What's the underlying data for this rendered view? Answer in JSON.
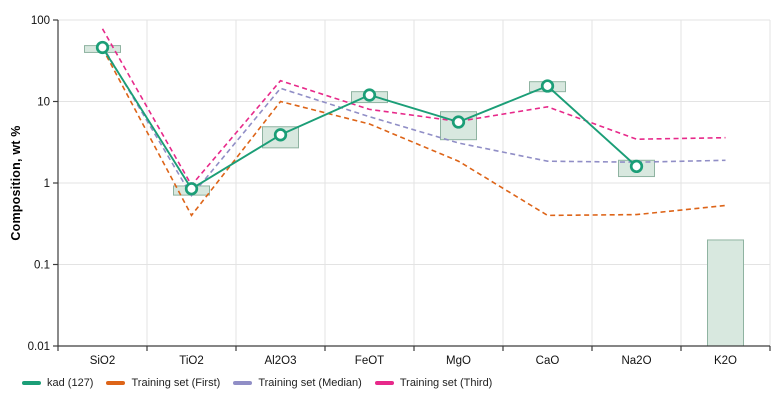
{
  "chart_data": {
    "type": "line",
    "title": "",
    "ylabel": "Composition, wt %",
    "yscale": "log",
    "ylim": [
      0.01,
      100
    ],
    "yticks": [
      "100",
      "10",
      "1",
      "0.1",
      "0.01"
    ],
    "ytick_values": [
      100,
      10,
      1,
      0.1,
      0.01
    ],
    "categories": [
      "SiO2",
      "TiO2",
      "Al2O3",
      "FeOT",
      "MgO",
      "CaO",
      "Na2O",
      "K2O"
    ],
    "grid": true,
    "legend_position": "bottom-left",
    "series": [
      {
        "name": "kad (127)",
        "color": "#1b9e77",
        "line_style": "solid",
        "marker": "open-circle",
        "values": [
          46,
          0.85,
          3.9,
          12,
          5.6,
          15.5,
          1.6,
          null
        ]
      },
      {
        "name": "Training set (First)",
        "color": "#dd6418",
        "line_style": "dashed",
        "marker": "none",
        "values": [
          45,
          0.4,
          10,
          5.3,
          1.85,
          0.4,
          0.41,
          0.53
        ]
      },
      {
        "name": "Training set (Median)",
        "color": "#908ec6",
        "line_style": "dashed",
        "marker": "none",
        "values": [
          48,
          0.7,
          14.5,
          6.5,
          3.1,
          1.85,
          1.8,
          1.9
        ]
      },
      {
        "name": "Training set (Third)",
        "color": "#e7298a",
        "line_style": "dashed",
        "marker": "none",
        "values": [
          78,
          0.94,
          18,
          8.0,
          5.7,
          8.6,
          3.45,
          3.6
        ]
      }
    ],
    "range_boxes": {
      "fill": "#d8e8df",
      "border": "#8fb3a1",
      "ranges": [
        {
          "category": "SiO2",
          "low": 40,
          "high": 48.5
        },
        {
          "category": "TiO2",
          "low": 0.71,
          "high": 0.92
        },
        {
          "category": "Al2O3",
          "low": 2.7,
          "high": 4.9
        },
        {
          "category": "FeOT",
          "low": 9.7,
          "high": 13.2
        },
        {
          "category": "MgO",
          "low": 3.4,
          "high": 7.5
        },
        {
          "category": "CaO",
          "low": 13.2,
          "high": 17.5
        },
        {
          "category": "Na2O",
          "low": 1.2,
          "high": 1.9
        },
        {
          "category": "K2O",
          "low": 0.01,
          "high": 0.2
        }
      ]
    }
  },
  "colors": {
    "grid": "#e3e3e3",
    "axis": "#3c3c3c",
    "tick_text": "#111111",
    "background": "#ffffff"
  }
}
